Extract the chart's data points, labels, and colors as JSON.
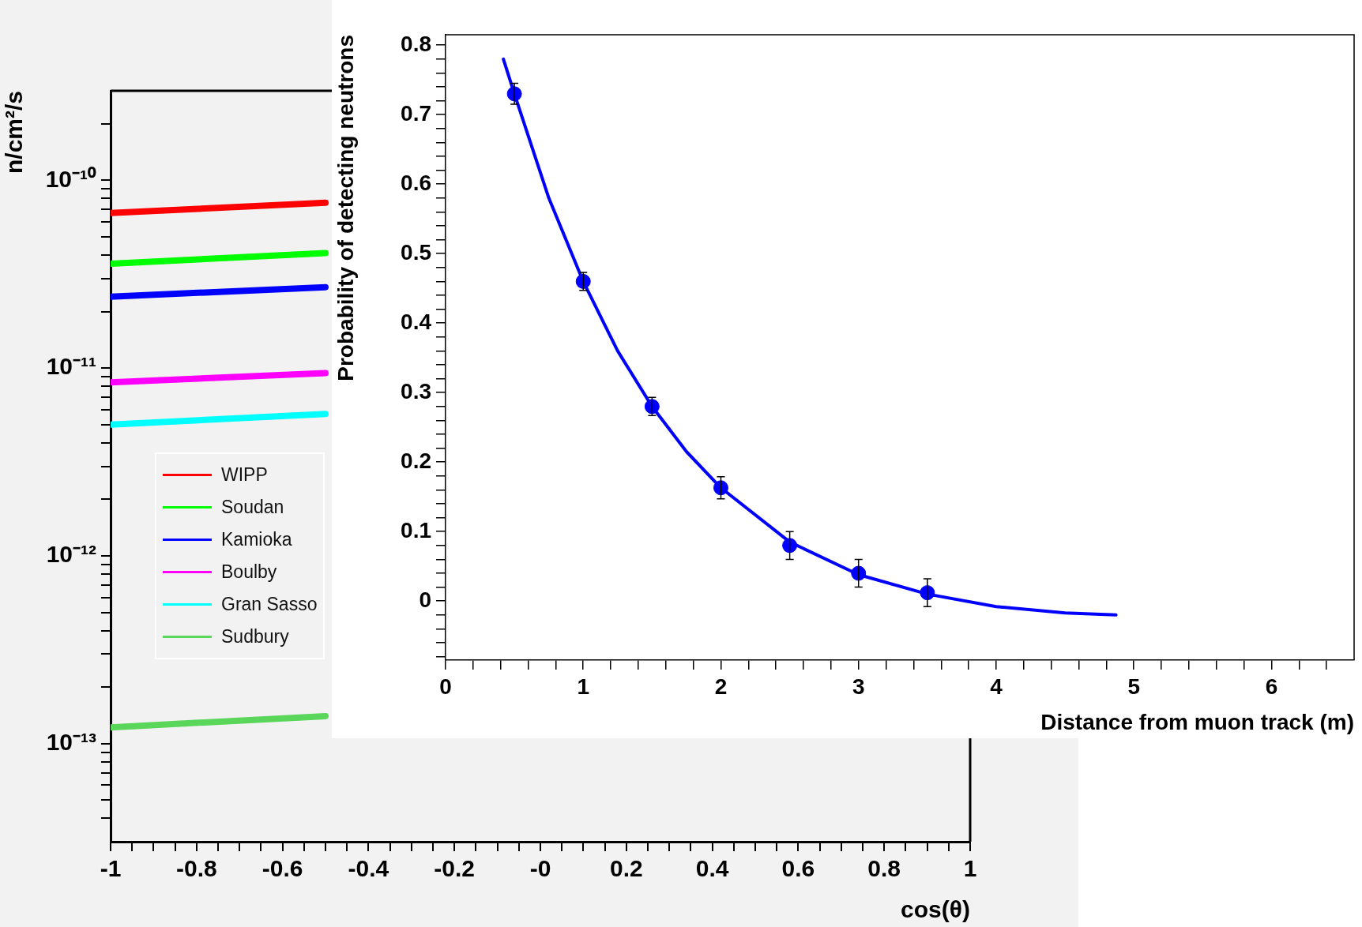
{
  "chart_data": [
    {
      "type": "line",
      "xlabel": "cos(θ)",
      "ylabel": "n/cm²/s",
      "log": "y",
      "legend": "left",
      "x": [
        -1,
        -0.5
      ],
      "xlim": [
        -1,
        1
      ],
      "xticks": [
        -1,
        {
          "value": -0.95,
          "label": null
        },
        {
          "value": -0.9,
          "label": null
        },
        {
          "value": -0.85,
          "label": null
        },
        -0.8,
        {
          "value": -0.75,
          "label": null
        },
        {
          "value": -0.7,
          "label": null
        },
        {
          "value": -0.65,
          "label": null
        },
        -0.6,
        {
          "value": -0.55,
          "label": null
        },
        {
          "value": -0.5,
          "label": null
        },
        {
          "value": -0.45,
          "label": null
        },
        -0.4,
        {
          "value": -0.35,
          "label": null
        },
        {
          "value": -0.3,
          "label": null
        },
        {
          "value": -0.25,
          "label": null
        },
        -0.2,
        {
          "value": -0.15,
          "label": null
        },
        {
          "value": -0.1,
          "label": null
        },
        {
          "value": -0.05,
          "label": null
        },
        {
          "value": 0,
          "label": "-0"
        },
        {
          "value": 0.05,
          "label": null
        },
        {
          "value": 0.1,
          "label": null
        },
        {
          "value": 0.15,
          "label": null
        },
        0.2,
        {
          "value": 0.25,
          "label": null
        },
        {
          "value": 0.3,
          "label": null
        },
        {
          "value": 0.35,
          "label": null
        },
        0.4,
        {
          "value": 0.45,
          "label": null
        },
        {
          "value": 0.5,
          "label": null
        },
        {
          "value": 0.55,
          "label": null
        },
        0.6,
        {
          "value": 0.65,
          "label": null
        },
        {
          "value": 0.7,
          "label": null
        },
        {
          "value": 0.75,
          "label": null
        },
        0.8,
        {
          "value": 0.85,
          "label": null
        },
        {
          "value": 0.9,
          "label": null
        },
        {
          "value": 0.95,
          "label": null
        },
        1
      ],
      "ylim": [
        3e-14,
        3e-10
      ],
      "yticks": [
        {
          "value": 4e-14,
          "label": null
        },
        {
          "value": 5e-14,
          "label": null
        },
        {
          "value": 6e-14,
          "label": null
        },
        {
          "value": 7e-14,
          "label": null
        },
        {
          "value": 8e-14,
          "label": null
        },
        {
          "value": 9e-14,
          "label": null
        },
        {
          "value": 1e-13,
          "label": "10⁻¹³"
        },
        {
          "value": 2e-13,
          "label": null
        },
        {
          "value": 3e-13,
          "label": null
        },
        {
          "value": 4e-13,
          "label": null
        },
        {
          "value": 5e-13,
          "label": null
        },
        {
          "value": 6e-13,
          "label": null
        },
        {
          "value": 7e-13,
          "label": null
        },
        {
          "value": 8e-13,
          "label": null
        },
        {
          "value": 9e-13,
          "label": null
        },
        {
          "value": 1e-12,
          "label": "10⁻¹²"
        },
        {
          "value": 2e-12,
          "label": null
        },
        {
          "value": 3e-12,
          "label": null
        },
        {
          "value": 4e-12,
          "label": null
        },
        {
          "value": 5e-12,
          "label": null
        },
        {
          "value": 6e-12,
          "label": null
        },
        {
          "value": 7e-12,
          "label": null
        },
        {
          "value": 8e-12,
          "label": null
        },
        {
          "value": 9e-12,
          "label": null
        },
        {
          "value": 1e-11,
          "label": "10⁻¹¹"
        },
        {
          "value": 2e-11,
          "label": null
        },
        {
          "value": 3e-11,
          "label": null
        },
        {
          "value": 4e-11,
          "label": null
        },
        {
          "value": 5e-11,
          "label": null
        },
        {
          "value": 6e-11,
          "label": null
        },
        {
          "value": 7e-11,
          "label": null
        },
        {
          "value": 8e-11,
          "label": null
        },
        {
          "value": 9e-11,
          "label": null
        },
        {
          "value": 1e-10,
          "label": "10⁻¹⁰"
        },
        {
          "value": 2e-10,
          "label": null
        }
      ],
      "series": [
        {
          "name": "WIPP",
          "color": "#ff0000",
          "values": [
            6.7e-11,
            7.6e-11
          ]
        },
        {
          "name": "Soudan",
          "color": "#00ff00",
          "values": [
            3.6e-11,
            4.1e-11
          ]
        },
        {
          "name": "Kamioka",
          "color": "#0000ff",
          "values": [
            2.4e-11,
            2.7e-11
          ]
        },
        {
          "name": "Boulby",
          "color": "#ff00ff",
          "values": [
            8.4e-12,
            9.4e-12
          ]
        },
        {
          "name": "Gran Sasso",
          "color": "#00ffff",
          "values": [
            5e-12,
            5.7e-12
          ]
        },
        {
          "name": "Sudbury",
          "color": "#5ad65a",
          "values": [
            1.22e-13,
            1.4e-13
          ]
        }
      ]
    },
    {
      "type": "scatter",
      "xlabel": "Distance from muon track (m)",
      "ylabel": "Probability of detecting neutrons",
      "xlim": [
        0,
        6.6
      ],
      "xticks": [
        0,
        {
          "value": 0.2,
          "label": null
        },
        {
          "value": 0.4,
          "label": null
        },
        {
          "value": 0.6,
          "label": null
        },
        {
          "value": 0.8,
          "label": null
        },
        1,
        {
          "value": 1.2,
          "label": null
        },
        {
          "value": 1.4,
          "label": null
        },
        {
          "value": 1.6,
          "label": null
        },
        {
          "value": 1.8,
          "label": null
        },
        2,
        {
          "value": 2.2,
          "label": null
        },
        {
          "value": 2.4,
          "label": null
        },
        {
          "value": 2.6,
          "label": null
        },
        {
          "value": 2.8,
          "label": null
        },
        3,
        {
          "value": 3.2,
          "label": null
        },
        {
          "value": 3.4,
          "label": null
        },
        {
          "value": 3.6,
          "label": null
        },
        {
          "value": 3.8,
          "label": null
        },
        4,
        {
          "value": 4.2,
          "label": null
        },
        {
          "value": 4.4,
          "label": null
        },
        {
          "value": 4.6,
          "label": null
        },
        {
          "value": 4.8,
          "label": null
        },
        5,
        {
          "value": 5.2,
          "label": null
        },
        {
          "value": 5.4,
          "label": null
        },
        {
          "value": 5.6,
          "label": null
        },
        {
          "value": 5.8,
          "label": null
        },
        6,
        {
          "value": 6.2,
          "label": null
        },
        {
          "value": 6.4,
          "label": null
        }
      ],
      "ylim": [
        -0.085,
        0.815
      ],
      "yticks": [
        {
          "value": -0.08,
          "label": null
        },
        {
          "value": -0.06,
          "label": null
        },
        {
          "value": -0.04,
          "label": null
        },
        {
          "value": -0.02,
          "label": null
        },
        0,
        {
          "value": 0.02,
          "label": null
        },
        {
          "value": 0.04,
          "label": null
        },
        {
          "value": 0.06,
          "label": null
        },
        {
          "value": 0.08,
          "label": null
        },
        0.1,
        {
          "value": 0.12,
          "label": null
        },
        {
          "value": 0.14,
          "label": null
        },
        {
          "value": 0.16,
          "label": null
        },
        {
          "value": 0.18,
          "label": null
        },
        0.2,
        {
          "value": 0.22,
          "label": null
        },
        {
          "value": 0.24,
          "label": null
        },
        {
          "value": 0.26,
          "label": null
        },
        {
          "value": 0.28,
          "label": null
        },
        0.3,
        {
          "value": 0.32,
          "label": null
        },
        {
          "value": 0.34,
          "label": null
        },
        {
          "value": 0.36,
          "label": null
        },
        {
          "value": 0.38,
          "label": null
        },
        0.4,
        {
          "value": 0.42,
          "label": null
        },
        {
          "value": 0.44,
          "label": null
        },
        {
          "value": 0.46,
          "label": null
        },
        {
          "value": 0.48,
          "label": null
        },
        0.5,
        {
          "value": 0.52,
          "label": null
        },
        {
          "value": 0.54,
          "label": null
        },
        {
          "value": 0.56,
          "label": null
        },
        {
          "value": 0.58,
          "label": null
        },
        0.6,
        {
          "value": 0.62,
          "label": null
        },
        {
          "value": 0.64,
          "label": null
        },
        {
          "value": 0.66,
          "label": null
        },
        {
          "value": 0.68,
          "label": null
        },
        0.7,
        {
          "value": 0.72,
          "label": null
        },
        {
          "value": 0.74,
          "label": null
        },
        {
          "value": 0.76,
          "label": null
        },
        {
          "value": 0.78,
          "label": null
        },
        0.8
      ],
      "series": [
        {
          "type": "line",
          "marker": "none",
          "color": "#0000ff",
          "x": [
            0.42,
            0.5,
            0.75,
            1,
            1.25,
            1.5,
            1.75,
            2,
            2.5,
            3,
            3.5,
            4,
            4.5,
            4.87
          ],
          "values": [
            0.78,
            0.73,
            0.58,
            0.46,
            0.36,
            0.28,
            0.215,
            0.163,
            0.085,
            0.038,
            0.01,
            -0.008,
            -0.017,
            -0.02
          ]
        },
        {
          "type": "scatter",
          "marker": "circle",
          "color": "#0000ff",
          "x": [
            0.5,
            1,
            1.5,
            2,
            2.5,
            3,
            3.5
          ],
          "values": [
            0.73,
            0.46,
            0.28,
            0.163,
            0.08,
            0.04,
            0.012
          ],
          "errors": [
            0.015,
            0.013,
            0.013,
            0.016,
            0.02,
            0.02,
            0.02
          ]
        }
      ]
    }
  ]
}
